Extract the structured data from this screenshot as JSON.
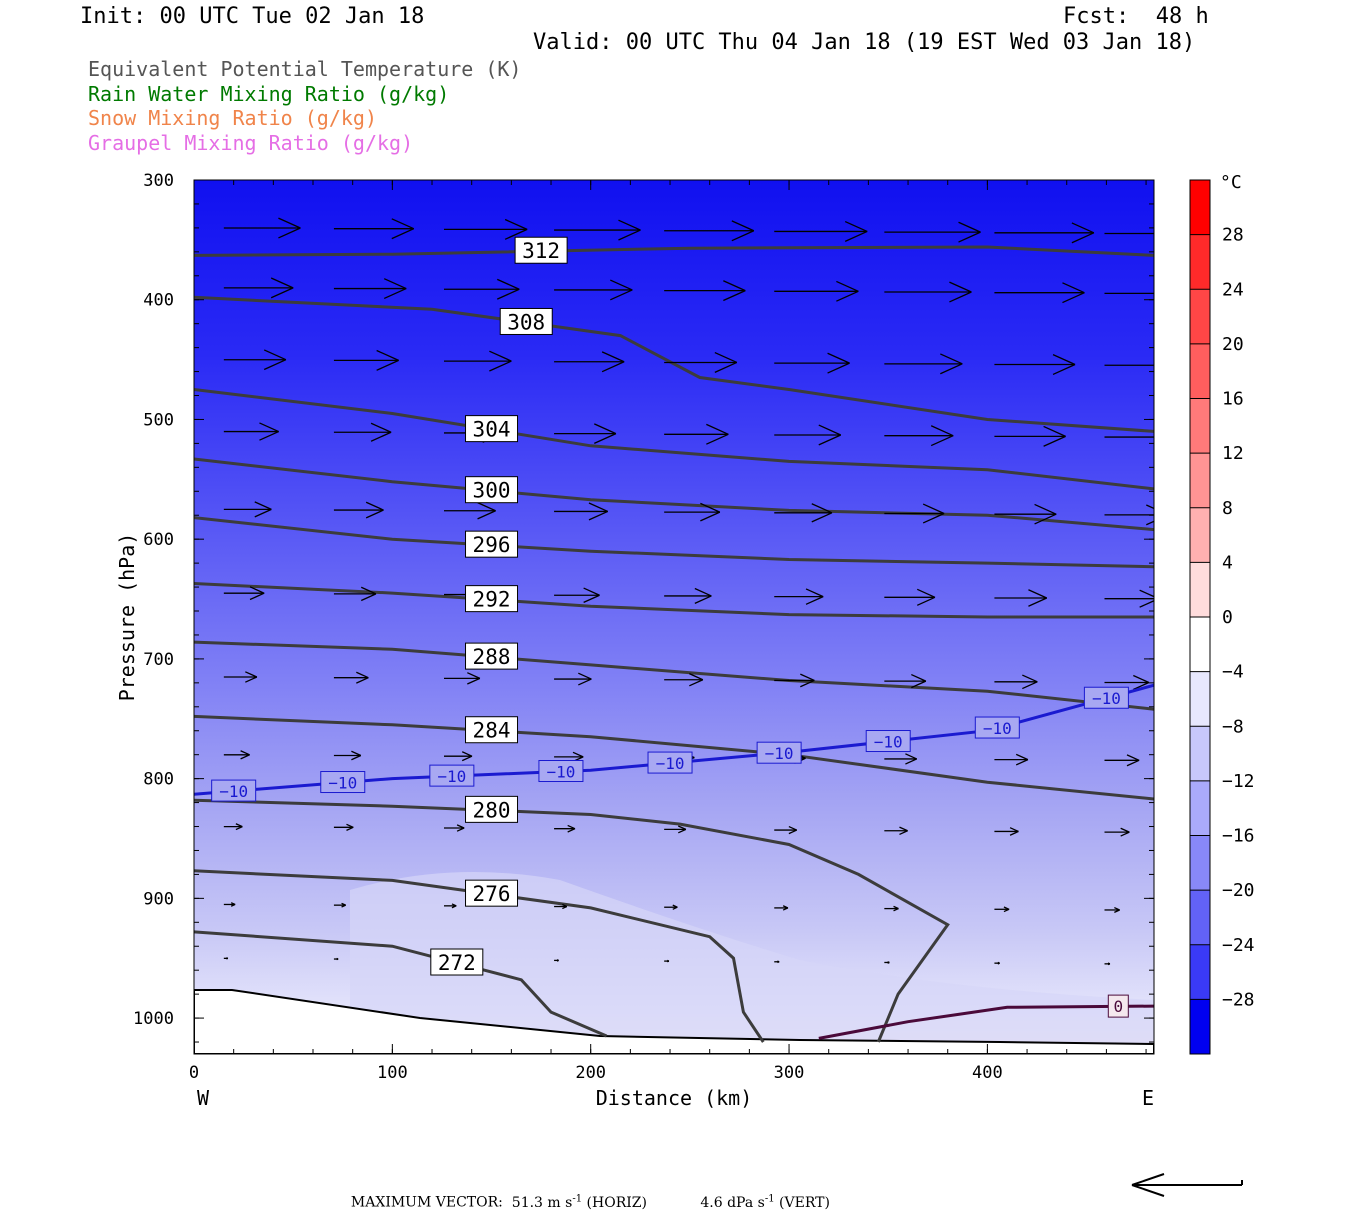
{
  "header": {
    "init": "Init: 00 UTC Tue 02 Jan 18",
    "fcst": "Fcst:  48 h",
    "valid": "Valid: 00 UTC Thu 04 Jan 18 (19 EST Wed 03 Jan 18)"
  },
  "legend": [
    {
      "label": "Equivalent Potential Temperature (K)",
      "color": "#555555"
    },
    {
      "label": "Rain Water Mixing Ratio (g/kg)",
      "color": "#007a00"
    },
    {
      "label": "Snow Mixing Ratio (g/kg)",
      "color": "#f0844a"
    },
    {
      "label": "Graupel Mixing Ratio (g/kg)",
      "color": "#e56ee5"
    }
  ],
  "colorbar": {
    "unit": "°C",
    "ticks": [
      "28",
      "24",
      "20",
      "16",
      "12",
      "8",
      "4",
      "0",
      "−4",
      "−8",
      "−12",
      "−16",
      "−20",
      "−24",
      "−28"
    ]
  },
  "chart_data": {
    "type": "cross-section",
    "xlabel": "Distance (km)",
    "ylabel": "Pressure (hPa)",
    "x_ticks": [
      "0",
      "100",
      "200",
      "300",
      "400"
    ],
    "y_ticks": [
      "300",
      "400",
      "500",
      "600",
      "700",
      "800",
      "900",
      "1000"
    ],
    "xlim": [
      0,
      484
    ],
    "ylim": [
      1030,
      300
    ],
    "left_end": "W",
    "right_end": "E",
    "theta_e_contours": [
      {
        "label": "312",
        "points": [
          [
            0,
            363
          ],
          [
            100,
            362
          ],
          [
            250,
            357
          ],
          [
            400,
            356
          ],
          [
            484,
            363
          ]
        ]
      },
      {
        "label": "308",
        "points": [
          [
            0,
            398
          ],
          [
            120,
            408
          ],
          [
            215,
            430
          ],
          [
            255,
            465
          ],
          [
            300,
            475
          ],
          [
            400,
            500
          ],
          [
            484,
            510
          ]
        ]
      },
      {
        "label": "304",
        "points": [
          [
            0,
            475
          ],
          [
            100,
            495
          ],
          [
            200,
            522
          ],
          [
            300,
            535
          ],
          [
            400,
            542
          ],
          [
            484,
            558
          ]
        ]
      },
      {
        "label": "300",
        "points": [
          [
            0,
            533
          ],
          [
            100,
            552
          ],
          [
            200,
            567
          ],
          [
            300,
            576
          ],
          [
            400,
            580
          ],
          [
            484,
            592
          ]
        ]
      },
      {
        "label": "296",
        "points": [
          [
            0,
            582
          ],
          [
            100,
            600
          ],
          [
            200,
            610
          ],
          [
            300,
            617
          ],
          [
            400,
            620
          ],
          [
            484,
            623
          ]
        ]
      },
      {
        "label": "292",
        "points": [
          [
            0,
            637
          ],
          [
            100,
            645
          ],
          [
            200,
            656
          ],
          [
            300,
            663
          ],
          [
            400,
            665
          ],
          [
            484,
            665
          ]
        ]
      },
      {
        "label": "288",
        "points": [
          [
            0,
            686
          ],
          [
            100,
            692
          ],
          [
            200,
            705
          ],
          [
            300,
            718
          ],
          [
            400,
            727
          ],
          [
            484,
            742
          ]
        ]
      },
      {
        "label": "284",
        "points": [
          [
            0,
            748
          ],
          [
            100,
            755
          ],
          [
            200,
            765
          ],
          [
            300,
            780
          ],
          [
            400,
            803
          ],
          [
            484,
            817
          ]
        ]
      },
      {
        "label": "280",
        "points": [
          [
            0,
            818
          ],
          [
            100,
            823
          ],
          [
            200,
            830
          ],
          [
            245,
            838
          ],
          [
            300,
            855
          ],
          [
            335,
            880
          ],
          [
            380,
            922
          ],
          [
            355,
            980
          ],
          [
            345,
            1020
          ]
        ]
      },
      {
        "label": "276",
        "points": [
          [
            0,
            877
          ],
          [
            100,
            885
          ],
          [
            200,
            908
          ],
          [
            260,
            932
          ],
          [
            272,
            950
          ],
          [
            277,
            995
          ],
          [
            287,
            1020
          ]
        ]
      },
      {
        "label": "272",
        "points": [
          [
            0,
            928
          ],
          [
            100,
            940
          ],
          [
            165,
            968
          ],
          [
            180,
            995
          ],
          [
            208,
            1015
          ]
        ]
      }
    ],
    "isotherm_minus10": {
      "label": "−10",
      "points": [
        [
          0,
          813
        ],
        [
          100,
          800
        ],
        [
          200,
          793
        ],
        [
          300,
          778
        ],
        [
          400,
          760
        ],
        [
          484,
          722
        ]
      ]
    },
    "isotherm_zero": {
      "label": "0",
      "points": [
        [
          315,
          1017
        ],
        [
          360,
          1003
        ],
        [
          410,
          991
        ],
        [
          484,
          990
        ]
      ]
    },
    "fill_bands": [
      {
        "pressure": 300,
        "temp": -30
      },
      {
        "pressure": 400,
        "temp": -28
      },
      {
        "pressure": 500,
        "temp": -24
      },
      {
        "pressure": 600,
        "temp": -20
      },
      {
        "pressure": 700,
        "temp": -14
      },
      {
        "pressure": 800,
        "temp": -10
      },
      {
        "pressure": 900,
        "temp": -6
      },
      {
        "pressure": 1000,
        "temp": 0
      }
    ],
    "maximum_vector": {
      "label": "MAXIMUM VECTOR:",
      "horiz_value": "51.3 m s",
      "horiz_exp": "-1",
      "horiz_tag": "(HORIZ)",
      "vert_value": "4.6 dPa s",
      "vert_exp": "-1",
      "vert_tag": "(VERT)"
    }
  }
}
